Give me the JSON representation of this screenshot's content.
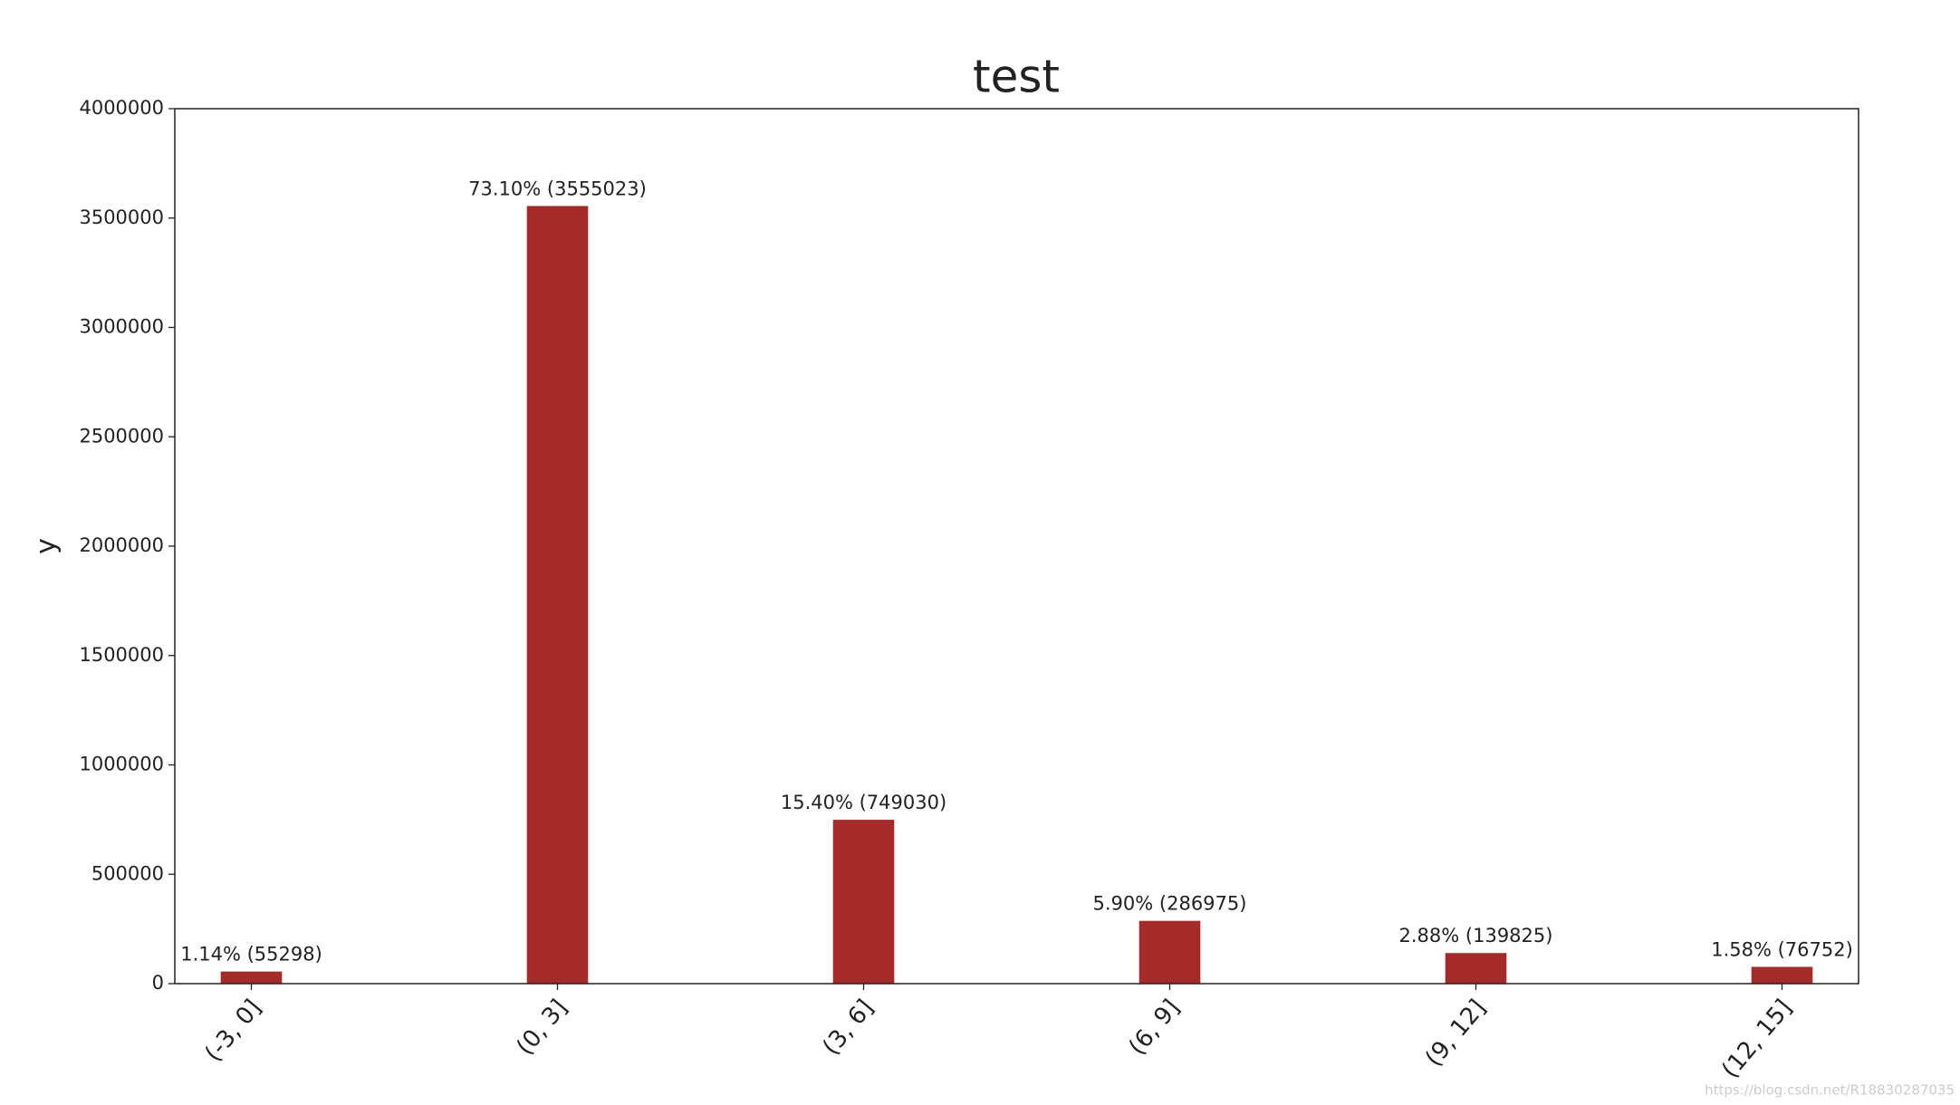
{
  "chart_data": {
    "type": "bar",
    "title": "test",
    "y_label": "y",
    "categories": [
      "(-3, 0]",
      "(0, 3]",
      "(3, 6]",
      "(6, 9]",
      "(9, 12]",
      "(12, 15]"
    ],
    "values": [
      55298,
      3555023,
      749030,
      286975,
      139825,
      76752
    ],
    "value_labels": [
      "1.14% (55298)",
      "73.10% (3555023)",
      "15.40% (749030)",
      "5.90% (286975)",
      "2.88% (139825)",
      "1.58% (76752)"
    ],
    "color": "#a52a2a",
    "ylim": [
      0,
      4000000
    ],
    "yticks": [
      0,
      500000,
      1000000,
      1500000,
      2000000,
      2500000,
      3000000,
      3500000,
      4000000
    ],
    "grid": false,
    "watermark": "https://blog.csdn.net/R18830287035"
  }
}
